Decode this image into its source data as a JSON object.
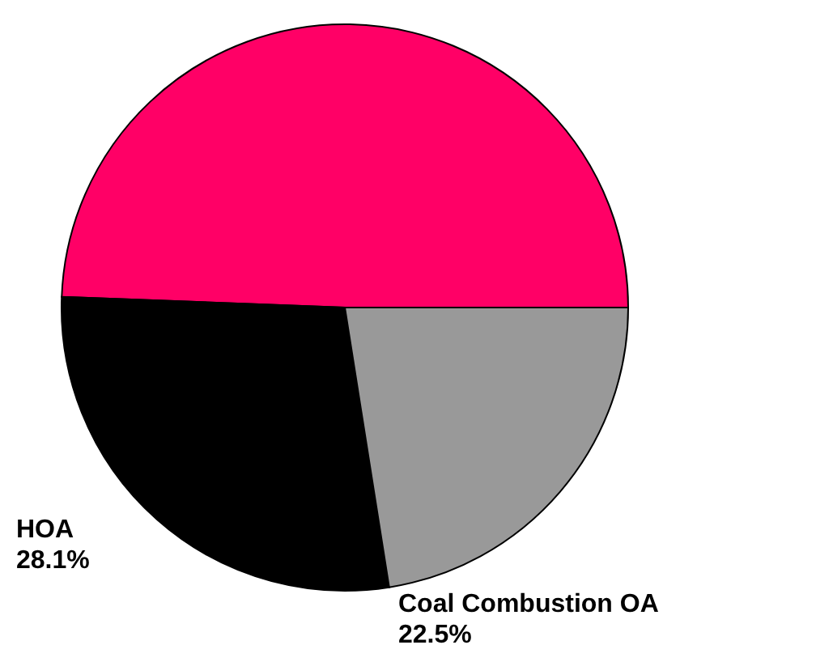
{
  "chart_data": {
    "type": "pie",
    "categories": [
      null,
      "HOA",
      "Coal Combustion OA"
    ],
    "values": [
      49.4,
      28.1,
      22.5
    ],
    "colors": [
      "#ff0066",
      "#000000",
      "#999999"
    ],
    "value_labels": [
      null,
      "28.1%",
      "22.5%"
    ]
  }
}
